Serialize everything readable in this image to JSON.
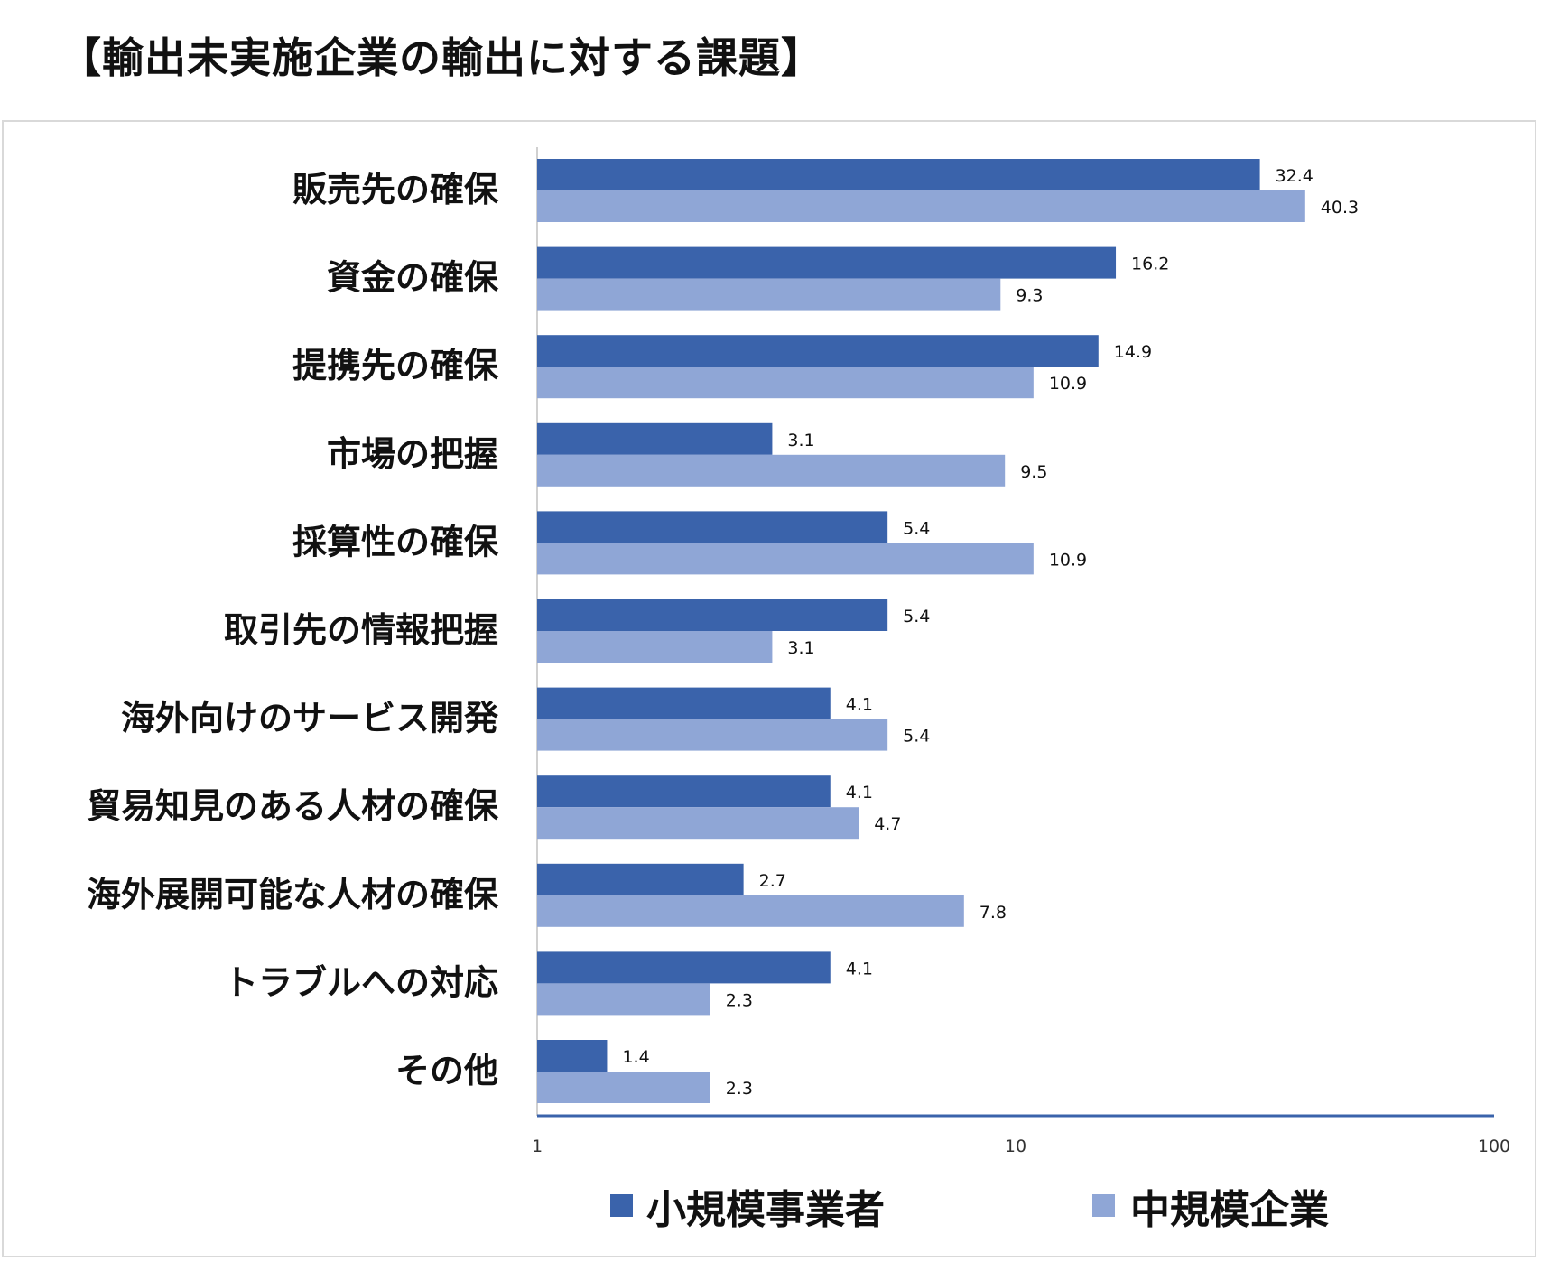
{
  "page_title": "【輸出未実施企業の輸出に対する課題】",
  "colors": {
    "small": "#3a63ab",
    "medium": "#8fa6d6",
    "axis": "#3a63ab"
  },
  "chart_data": {
    "type": "bar",
    "orientation": "horizontal",
    "xscale": "log",
    "xlim": [
      1,
      100
    ],
    "xticks": [
      "1",
      "10",
      "100"
    ],
    "categories": [
      "販売先の確保",
      "資金の確保",
      "提携先の確保",
      "市場の把握",
      "採算性の確保",
      "取引先の情報把握",
      "海外向けのサービス開発",
      "貿易知見のある人材の確保",
      "海外展開可能な人材の確保",
      "トラブルへの対応",
      "その他"
    ],
    "series": [
      {
        "name": "小規模事業者",
        "values": [
          32.4,
          16.2,
          14.9,
          3.1,
          5.4,
          5.4,
          4.1,
          4.1,
          2.7,
          4.1,
          1.4
        ]
      },
      {
        "name": "中規模企業",
        "values": [
          40.3,
          9.3,
          10.9,
          9.5,
          10.9,
          3.1,
          5.4,
          4.7,
          7.8,
          2.3,
          2.3
        ]
      }
    ],
    "legend": "bottom"
  }
}
